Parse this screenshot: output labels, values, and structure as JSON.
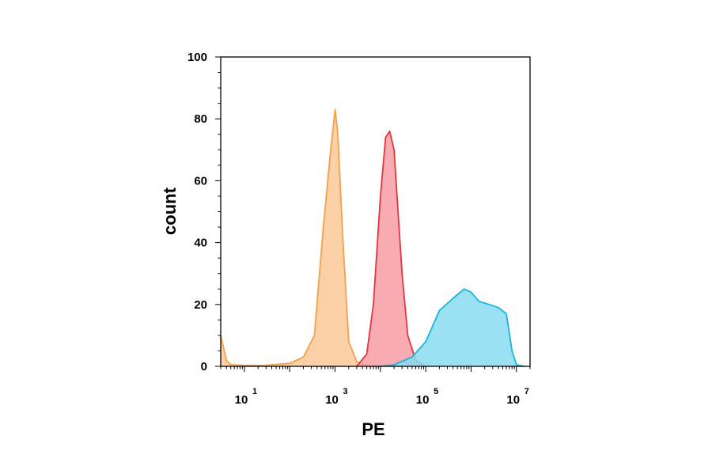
{
  "chart_data": {
    "type": "area",
    "xlabel": "PE",
    "ylabel": "count",
    "x_scale": "log",
    "xlim": [
      3,
      20000000
    ],
    "ylim": [
      0,
      100
    ],
    "x_ticks": [
      {
        "value": 10,
        "base": "10",
        "exp": "1"
      },
      {
        "value": 1000,
        "base": "10",
        "exp": "3"
      },
      {
        "value": 100000,
        "base": "10",
        "exp": "5"
      },
      {
        "value": 10000000,
        "base": "10",
        "exp": "7"
      }
    ],
    "y_ticks": [
      0,
      20,
      40,
      60,
      80,
      100
    ],
    "grid": false,
    "legend": "none",
    "series": [
      {
        "color": "#f5a04a",
        "fill": "#fbc998",
        "points": [
          [
            3,
            10
          ],
          [
            4,
            2
          ],
          [
            5,
            0.5
          ],
          [
            10,
            0.3
          ],
          [
            30,
            0.3
          ],
          [
            100,
            1
          ],
          [
            200,
            3
          ],
          [
            350,
            10
          ],
          [
            550,
            45
          ],
          [
            800,
            70
          ],
          [
            1000,
            83
          ],
          [
            1150,
            75
          ],
          [
            1500,
            40
          ],
          [
            2000,
            8
          ],
          [
            3000,
            1.5
          ],
          [
            5000,
            0.3
          ],
          [
            10000,
            0
          ]
        ]
      },
      {
        "color": "#e8343f",
        "fill": "#f79ea3",
        "points": [
          [
            3000,
            0
          ],
          [
            5000,
            4
          ],
          [
            7000,
            20
          ],
          [
            10000,
            55
          ],
          [
            13000,
            74
          ],
          [
            16000,
            76
          ],
          [
            20000,
            70
          ],
          [
            30000,
            30
          ],
          [
            40000,
            10
          ],
          [
            60000,
            2
          ],
          [
            100000,
            0
          ]
        ]
      },
      {
        "color": "#1bb3dd",
        "fill": "#88dcf2",
        "points": [
          [
            10000,
            0
          ],
          [
            20000,
            0.5
          ],
          [
            50000,
            3
          ],
          [
            100000,
            8
          ],
          [
            200000,
            18
          ],
          [
            400000,
            22
          ],
          [
            700000,
            25
          ],
          [
            1000000,
            24
          ],
          [
            1500000,
            21
          ],
          [
            2500000,
            20
          ],
          [
            4000000,
            19
          ],
          [
            6000000,
            17
          ],
          [
            8000000,
            5
          ],
          [
            10000000,
            0.5
          ],
          [
            15000000,
            0
          ]
        ]
      }
    ]
  }
}
